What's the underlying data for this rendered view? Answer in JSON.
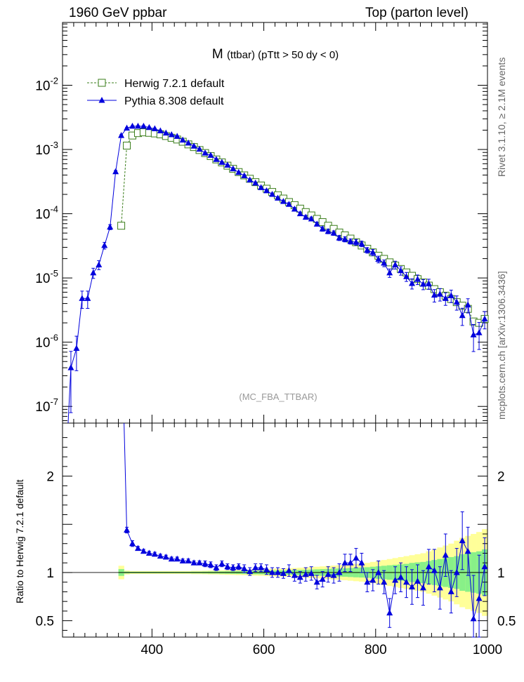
{
  "header": {
    "left": "1960 GeV ppbar",
    "right": "Top (parton level)"
  },
  "side": {
    "rivet": "Rivet 3.1.10, ≥ 2.1M events",
    "mcplots": "mcplots.cern.ch [arXiv:1306.3436]"
  },
  "colors": {
    "herwig": "#3a7d1a",
    "pythia": "#0000dd",
    "band_outer": "#ffff99",
    "band_inner": "#88f088"
  },
  "chart_data": [
    {
      "type": "line",
      "title": "M (ttbar) (pTtt > 50 dy < 0)",
      "title_main": "M",
      "title_sub": "(ttbar) (pTtt > 50 dy < 0)",
      "watermark": "(MC_FBA_TTBAR)",
      "xlim": [
        240,
        1000
      ],
      "ylim": [
        5.5e-08,
        0.095
      ],
      "yscale": "log",
      "yticks": [
        {
          "v": 1e-07,
          "label": "10",
          "exp": "-7"
        },
        {
          "v": 1e-06,
          "label": "10",
          "exp": "-6"
        },
        {
          "v": 1e-05,
          "label": "10",
          "exp": "-5"
        },
        {
          "v": 0.0001,
          "label": "10",
          "exp": "-4"
        },
        {
          "v": 0.001,
          "label": "10",
          "exp": "-3"
        },
        {
          "v": 0.01,
          "label": "10",
          "exp": "-2"
        }
      ],
      "legend_position": "top-left",
      "series": [
        {
          "name": "Herwig 7.2.1 default",
          "marker": "open-square",
          "linestyle": "dashed",
          "x": [
            345,
            355,
            365,
            375,
            385,
            395,
            405,
            415,
            425,
            435,
            445,
            455,
            465,
            475,
            485,
            495,
            505,
            515,
            525,
            535,
            545,
            555,
            565,
            575,
            585,
            595,
            605,
            615,
            625,
            635,
            645,
            655,
            665,
            675,
            685,
            695,
            705,
            715,
            725,
            735,
            745,
            755,
            765,
            775,
            785,
            795,
            805,
            815,
            825,
            835,
            845,
            855,
            865,
            875,
            885,
            895,
            905,
            915,
            925,
            935,
            945,
            955,
            965,
            975,
            985,
            995
          ],
          "values": [
            6.5e-05,
            0.00115,
            0.00165,
            0.0018,
            0.00185,
            0.00182,
            0.00178,
            0.00172,
            0.00162,
            0.00152,
            0.00143,
            0.00132,
            0.0012,
            0.00109,
            0.00098,
            0.00088,
            0.00079,
            0.0007,
            0.00063,
            0.00056,
            0.0005,
            0.000445,
            0.000395,
            0.00035,
            0.00031,
            0.000275,
            0.000245,
            0.000218,
            0.000194,
            0.000172,
            0.000152,
            0.000136,
            0.00012,
            0.000106,
            9.4e-05,
            8.3e-05,
            7.4e-05,
            6.5e-05,
            5.8e-05,
            5.1e-05,
            4.6e-05,
            4.1e-05,
            3.6e-05,
            3.2e-05,
            2.85e-05,
            2.5e-05,
            2.22e-05,
            1.98e-05,
            1.75e-05,
            1.56e-05,
            1.38e-05,
            1.22e-05,
            1.08e-05,
            9.6e-06,
            8.5e-06,
            7.6e-06,
            6.7e-06,
            6e-06,
            5.3e-06,
            4.7e-06,
            4.2e-06,
            3.7e-06,
            3.3e-06,
            2.1e-06,
            2e-06,
            2.3e-06
          ]
        },
        {
          "name": "Pythia 8.308 default",
          "marker": "filled-triangle",
          "linestyle": "solid",
          "x": [
            255,
            265,
            275,
            285,
            295,
            305,
            315,
            325,
            335,
            345,
            355,
            365,
            375,
            385,
            395,
            405,
            415,
            425,
            435,
            445,
            455,
            465,
            475,
            485,
            495,
            505,
            515,
            525,
            535,
            545,
            555,
            565,
            575,
            585,
            595,
            605,
            615,
            625,
            635,
            645,
            655,
            665,
            675,
            685,
            695,
            705,
            715,
            725,
            735,
            745,
            755,
            765,
            775,
            785,
            795,
            805,
            815,
            825,
            835,
            845,
            855,
            865,
            875,
            885,
            895,
            905,
            915,
            925,
            935,
            945,
            955,
            965,
            975,
            985,
            995
          ],
          "values": [
            4e-07,
            8e-07,
            4.8e-06,
            4.8e-06,
            1.2e-05,
            1.6e-05,
            3.2e-05,
            6.2e-05,
            0.00045,
            0.00165,
            0.00215,
            0.0023,
            0.0023,
            0.0023,
            0.0022,
            0.0021,
            0.00195,
            0.0018,
            0.0017,
            0.0016,
            0.0014,
            0.00126,
            0.00113,
            0.00101,
            0.00088,
            0.00081,
            0.0007,
            0.00063,
            0.00057,
            0.0005,
            0.00044,
            0.00039,
            0.000335,
            0.0003,
            0.000255,
            0.000228,
            0.0002,
            0.000175,
            0.000155,
            0.00014,
            0.000118,
            0.0001,
            8.8e-05,
            8.3e-05,
            6.9e-05,
            5.8e-05,
            5.3e-05,
            5e-05,
            4.2e-05,
            4e-05,
            3.7e-05,
            3.6e-05,
            3.4e-05,
            2.7e-05,
            2.5e-05,
            1.95e-05,
            1.7e-05,
            1.2e-05,
            1.6e-05,
            1.3e-05,
            1.05e-05,
            8.2e-06,
            9.5e-06,
            8e-06,
            8.1e-06,
            5.4e-06,
            5.6e-06,
            4.8e-06,
            5.3e-06,
            4.2e-06,
            2.6e-06,
            3.8e-06,
            1.3e-06,
            1.4e-06,
            2.3e-06
          ],
          "err": [
            0.8,
            0.55,
            0.3,
            0.3,
            0.18,
            0.16,
            0.12,
            0.09,
            0.05,
            0.03,
            0.02,
            0.02,
            0.02,
            0.02,
            0.02,
            0.02,
            0.02,
            0.02,
            0.02,
            0.02,
            0.02,
            0.02,
            0.02,
            0.02,
            0.03,
            0.03,
            0.03,
            0.03,
            0.03,
            0.03,
            0.03,
            0.04,
            0.04,
            0.04,
            0.04,
            0.05,
            0.05,
            0.05,
            0.05,
            0.06,
            0.06,
            0.06,
            0.07,
            0.07,
            0.07,
            0.08,
            0.08,
            0.08,
            0.09,
            0.09,
            0.09,
            0.1,
            0.1,
            0.1,
            0.11,
            0.12,
            0.12,
            0.15,
            0.14,
            0.15,
            0.16,
            0.18,
            0.17,
            0.18,
            0.18,
            0.22,
            0.22,
            0.22,
            0.22,
            0.25,
            0.3,
            0.25,
            0.45,
            0.45,
            0.3
          ]
        }
      ]
    },
    {
      "type": "line",
      "ylabel": "Ratio to Herwig 7.2.1 default",
      "xlim": [
        240,
        1000
      ],
      "ylim": [
        0.33,
        2.55
      ],
      "yticks": [
        {
          "v": 0.5,
          "label": "0.5"
        },
        {
          "v": 1,
          "label": "1"
        },
        {
          "v": 2,
          "label": "2"
        }
      ],
      "xticks": [
        {
          "v": 400,
          "label": "400"
        },
        {
          "v": 600,
          "label": "600"
        },
        {
          "v": 800,
          "label": "800"
        },
        {
          "v": 1000,
          "label": "1000"
        }
      ],
      "bands": {
        "x_edges": [
          340,
          350,
          360,
          370,
          380,
          390,
          400,
          410,
          420,
          430,
          440,
          450,
          460,
          470,
          480,
          490,
          500,
          510,
          520,
          530,
          540,
          550,
          560,
          570,
          580,
          590,
          600,
          610,
          620,
          630,
          640,
          650,
          660,
          670,
          680,
          690,
          700,
          710,
          720,
          730,
          740,
          750,
          760,
          770,
          780,
          790,
          800,
          810,
          820,
          830,
          840,
          850,
          860,
          870,
          880,
          890,
          900,
          910,
          920,
          930,
          940,
          950,
          960,
          970,
          980,
          990,
          1000
        ],
        "outer_halfwidth": [
          0.07,
          0.02,
          0.015,
          0.015,
          0.015,
          0.015,
          0.015,
          0.015,
          0.015,
          0.015,
          0.015,
          0.015,
          0.015,
          0.017,
          0.017,
          0.018,
          0.02,
          0.02,
          0.022,
          0.024,
          0.025,
          0.027,
          0.028,
          0.03,
          0.032,
          0.034,
          0.036,
          0.038,
          0.04,
          0.042,
          0.044,
          0.047,
          0.05,
          0.053,
          0.056,
          0.06,
          0.064,
          0.068,
          0.072,
          0.076,
          0.08,
          0.085,
          0.09,
          0.095,
          0.1,
          0.11,
          0.12,
          0.13,
          0.14,
          0.15,
          0.16,
          0.17,
          0.18,
          0.19,
          0.2,
          0.22,
          0.24,
          0.26,
          0.28,
          0.3,
          0.33,
          0.36,
          0.38,
          0.4,
          0.42,
          0.45
        ],
        "inner_halfwidth": [
          0.035,
          0.01,
          0.008,
          0.008,
          0.008,
          0.008,
          0.008,
          0.008,
          0.008,
          0.008,
          0.008,
          0.008,
          0.008,
          0.009,
          0.009,
          0.01,
          0.011,
          0.011,
          0.012,
          0.013,
          0.014,
          0.015,
          0.016,
          0.017,
          0.018,
          0.019,
          0.02,
          0.021,
          0.022,
          0.023,
          0.024,
          0.026,
          0.028,
          0.029,
          0.031,
          0.033,
          0.035,
          0.037,
          0.04,
          0.042,
          0.044,
          0.047,
          0.05,
          0.052,
          0.055,
          0.06,
          0.065,
          0.07,
          0.075,
          0.08,
          0.085,
          0.09,
          0.1,
          0.105,
          0.11,
          0.12,
          0.13,
          0.14,
          0.15,
          0.16,
          0.17,
          0.19,
          0.2,
          0.21,
          0.22,
          0.24
        ]
      },
      "series": [
        {
          "name": "Pythia 8.308 default",
          "x": [
            355,
            365,
            375,
            385,
            395,
            405,
            415,
            425,
            435,
            445,
            455,
            465,
            475,
            485,
            495,
            505,
            515,
            525,
            535,
            545,
            555,
            565,
            575,
            585,
            595,
            605,
            615,
            625,
            635,
            645,
            655,
            665,
            675,
            685,
            695,
            705,
            715,
            725,
            735,
            745,
            755,
            765,
            775,
            785,
            795,
            805,
            815,
            825,
            835,
            845,
            855,
            865,
            875,
            885,
            895,
            905,
            915,
            925,
            935,
            945,
            955,
            965,
            975,
            985,
            995
          ],
          "values": [
            1.44,
            1.3,
            1.25,
            1.22,
            1.2,
            1.19,
            1.17,
            1.16,
            1.14,
            1.14,
            1.12,
            1.12,
            1.1,
            1.1,
            1.09,
            1.08,
            1.05,
            1.09,
            1.06,
            1.05,
            1.06,
            1.04,
            1.01,
            1.05,
            1.05,
            1.03,
            1.0,
            1.0,
            0.99,
            1.02,
            0.97,
            0.95,
            0.98,
            0.99,
            0.9,
            0.93,
            0.98,
            0.97,
            1.0,
            1.1,
            1.1,
            1.15,
            1.1,
            0.9,
            0.92,
            1.0,
            0.9,
            0.58,
            0.92,
            0.95,
            0.9,
            0.85,
            0.91,
            0.84,
            1.06,
            1.02,
            0.84,
            1.18,
            0.8,
            1.0,
            1.33,
            1.22,
            0.52,
            0.73,
            1.06
          ],
          "err": [
            0.03,
            0.03,
            0.02,
            0.02,
            0.02,
            0.02,
            0.02,
            0.02,
            0.02,
            0.02,
            0.02,
            0.02,
            0.02,
            0.02,
            0.03,
            0.03,
            0.03,
            0.03,
            0.03,
            0.03,
            0.03,
            0.04,
            0.04,
            0.04,
            0.04,
            0.05,
            0.05,
            0.05,
            0.05,
            0.06,
            0.06,
            0.06,
            0.07,
            0.07,
            0.07,
            0.08,
            0.08,
            0.08,
            0.09,
            0.09,
            0.09,
            0.1,
            0.1,
            0.1,
            0.11,
            0.12,
            0.12,
            0.15,
            0.14,
            0.15,
            0.16,
            0.18,
            0.17,
            0.18,
            0.18,
            0.22,
            0.22,
            0.22,
            0.22,
            0.25,
            0.3,
            0.25,
            0.45,
            0.45,
            0.3
          ]
        }
      ],
      "first_point_offscale": {
        "x": 350,
        "value": 2.6
      }
    }
  ]
}
